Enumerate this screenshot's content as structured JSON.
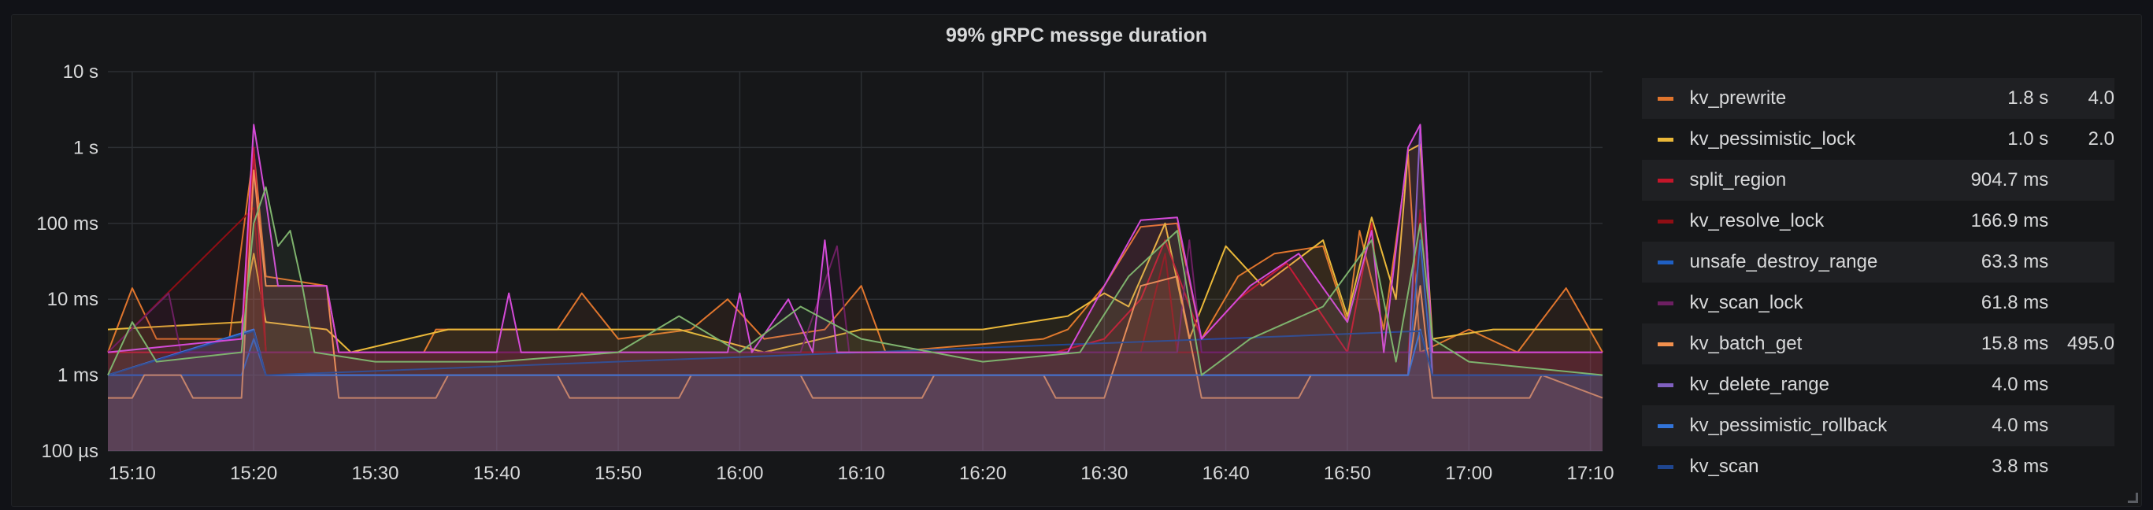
{
  "panel": {
    "title": "99% gRPC messge duration"
  },
  "chart_data": {
    "type": "line",
    "title": "99% gRPC messge duration",
    "yscale": "log",
    "ylim": [
      0.1,
      10000
    ],
    "y_ticks": [
      {
        "v": 10000,
        "label": "10 s"
      },
      {
        "v": 1000,
        "label": "1 s"
      },
      {
        "v": 100,
        "label": "100 ms"
      },
      {
        "v": 10,
        "label": "10 ms"
      },
      {
        "v": 1,
        "label": "1 ms"
      },
      {
        "v": 0.1,
        "label": "100 µs"
      }
    ],
    "x_unit": "minutes",
    "xlim": [
      "15:08",
      "17:11"
    ],
    "x_ticks": [
      "15:10",
      "15:20",
      "15:30",
      "15:40",
      "15:50",
      "16:00",
      "16:10",
      "16:20",
      "16:30",
      "16:40",
      "16:50",
      "17:00",
      "17:10"
    ],
    "grid": true,
    "legend_position": "right",
    "series": [
      {
        "name": "kv_prewrite",
        "color": "#e0752d",
        "current": "1.8 s",
        "max": "4.0",
        "points": [
          [
            "15:08",
            2
          ],
          [
            "15:10",
            14
          ],
          [
            "15:12",
            3
          ],
          [
            "15:18",
            3
          ],
          [
            "15:20",
            900
          ],
          [
            "15:21",
            20
          ],
          [
            "15:26",
            15
          ],
          [
            "15:27",
            2
          ],
          [
            "15:34",
            2
          ],
          [
            "15:35",
            4
          ],
          [
            "15:45",
            4
          ],
          [
            "15:47",
            12
          ],
          [
            "15:50",
            3
          ],
          [
            "15:56",
            4
          ],
          [
            "15:59",
            10
          ],
          [
            "16:02",
            3
          ],
          [
            "16:07",
            4
          ],
          [
            "16:10",
            15
          ],
          [
            "16:12",
            2
          ],
          [
            "16:25",
            3
          ],
          [
            "16:27",
            4
          ],
          [
            "16:30",
            15
          ],
          [
            "16:33",
            90
          ],
          [
            "16:36",
            100
          ],
          [
            "16:38",
            3
          ],
          [
            "16:41",
            20
          ],
          [
            "16:44",
            40
          ],
          [
            "16:48",
            50
          ],
          [
            "16:50",
            5
          ],
          [
            "16:51",
            80
          ],
          [
            "16:53",
            4
          ],
          [
            "16:55",
            800
          ],
          [
            "16:56",
            2
          ],
          [
            "17:00",
            4
          ],
          [
            "17:04",
            2
          ],
          [
            "17:08",
            14
          ],
          [
            "17:11",
            2
          ]
        ]
      },
      {
        "name": "kv_pessimistic_lock",
        "color": "#eab839",
        "current": "1.0 s",
        "max": "2.0",
        "points": [
          [
            "15:08",
            4
          ],
          [
            "15:19",
            5
          ],
          [
            "15:20",
            40
          ],
          [
            "15:21",
            5
          ],
          [
            "15:26",
            4
          ],
          [
            "15:28",
            2
          ],
          [
            "15:36",
            4
          ],
          [
            "15:48",
            4
          ],
          [
            "15:55",
            4
          ],
          [
            "16:02",
            2
          ],
          [
            "16:10",
            4
          ],
          [
            "16:20",
            4
          ],
          [
            "16:27",
            6
          ],
          [
            "16:30",
            12
          ],
          [
            "16:32",
            8
          ],
          [
            "16:35",
            100
          ],
          [
            "16:37",
            3
          ],
          [
            "16:40",
            50
          ],
          [
            "16:43",
            15
          ],
          [
            "16:48",
            60
          ],
          [
            "16:50",
            6
          ],
          [
            "16:52",
            120
          ],
          [
            "16:54",
            10
          ],
          [
            "16:55",
            900
          ],
          [
            "16:56",
            1100
          ],
          [
            "16:57",
            3
          ],
          [
            "17:02",
            4
          ],
          [
            "17:11",
            4
          ]
        ]
      },
      {
        "name": "split_region",
        "color": "#c4162a",
        "current": "904.7 ms",
        "max": "",
        "points": [
          [
            "15:08",
            2
          ],
          [
            "15:19",
            2
          ],
          [
            "15:20",
            1000
          ],
          [
            "15:21",
            2
          ],
          [
            "15:40",
            2
          ],
          [
            "16:00",
            2
          ],
          [
            "16:26",
            2
          ],
          [
            "16:30",
            3
          ],
          [
            "16:33",
            10
          ],
          [
            "16:35",
            60
          ],
          [
            "16:38",
            3
          ],
          [
            "16:41",
            10
          ],
          [
            "16:45",
            30
          ],
          [
            "16:50",
            2
          ],
          [
            "16:52",
            100
          ],
          [
            "16:53",
            2
          ],
          [
            "17:11",
            2
          ]
        ]
      },
      {
        "name": "kv_resolve_lock",
        "color": "#8f0e14",
        "current": "166.9 ms",
        "max": "",
        "points": [
          [
            "15:08",
            2
          ],
          [
            "15:20",
            160
          ],
          [
            "15:21",
            2
          ],
          [
            "15:40",
            2
          ],
          [
            "16:20",
            2
          ],
          [
            "16:33",
            2
          ],
          [
            "16:35",
            40
          ],
          [
            "16:36",
            2
          ],
          [
            "16:55",
            2
          ],
          [
            "16:56",
            150
          ],
          [
            "16:57",
            2
          ],
          [
            "17:11",
            2
          ]
        ]
      },
      {
        "name": "unsafe_destroy_range",
        "color": "#1f60c4",
        "current": "63.3 ms",
        "max": "",
        "points": [
          [
            "15:08",
            1
          ],
          [
            "15:19",
            1
          ],
          [
            "15:20",
            3
          ],
          [
            "15:21",
            1
          ],
          [
            "16:00",
            1
          ],
          [
            "16:55",
            1
          ],
          [
            "16:56",
            60
          ],
          [
            "16:57",
            1
          ],
          [
            "17:11",
            1
          ]
        ]
      },
      {
        "name": "kv_scan_lock",
        "color": "#6d1f62",
        "current": "61.8 ms",
        "max": "",
        "points": [
          [
            "15:08",
            2
          ],
          [
            "15:13",
            12
          ],
          [
            "15:14",
            2
          ],
          [
            "15:30",
            2
          ],
          [
            "15:50",
            2
          ],
          [
            "16:05",
            2
          ],
          [
            "16:08",
            50
          ],
          [
            "16:09",
            2
          ],
          [
            "16:36",
            2
          ],
          [
            "16:37",
            60
          ],
          [
            "16:38",
            2
          ],
          [
            "17:11",
            2
          ]
        ]
      },
      {
        "name": "kv_batch_get",
        "color": "#f2904d",
        "current": "15.8 ms",
        "max": "495.0",
        "points": [
          [
            "15:08",
            0.5
          ],
          [
            "15:10",
            0.5
          ],
          [
            "15:11",
            1
          ],
          [
            "15:14",
            1
          ],
          [
            "15:15",
            0.5
          ],
          [
            "15:19",
            0.5
          ],
          [
            "15:20",
            500
          ],
          [
            "15:21",
            15
          ],
          [
            "15:26",
            15
          ],
          [
            "15:27",
            0.5
          ],
          [
            "15:35",
            0.5
          ],
          [
            "15:36",
            1
          ],
          [
            "15:45",
            1
          ],
          [
            "15:46",
            0.5
          ],
          [
            "15:55",
            0.5
          ],
          [
            "15:56",
            1
          ],
          [
            "16:05",
            1
          ],
          [
            "16:06",
            0.5
          ],
          [
            "16:15",
            0.5
          ],
          [
            "16:16",
            1
          ],
          [
            "16:25",
            1
          ],
          [
            "16:26",
            0.5
          ],
          [
            "16:30",
            0.5
          ],
          [
            "16:33",
            15
          ],
          [
            "16:36",
            20
          ],
          [
            "16:38",
            0.5
          ],
          [
            "16:46",
            0.5
          ],
          [
            "16:47",
            1
          ],
          [
            "16:55",
            1
          ],
          [
            "16:56",
            15
          ],
          [
            "16:57",
            0.5
          ],
          [
            "17:05",
            0.5
          ],
          [
            "17:06",
            1
          ],
          [
            "17:11",
            0.5
          ]
        ]
      },
      {
        "name": "kv_delete_range",
        "color": "#8060c0",
        "current": "4.0 ms",
        "max": "",
        "points": [
          [
            "15:08",
            1
          ],
          [
            "15:20",
            4
          ],
          [
            "15:21",
            1
          ],
          [
            "16:55",
            1
          ],
          [
            "16:56",
            2000
          ],
          [
            "16:57",
            1
          ],
          [
            "17:11",
            1
          ]
        ]
      },
      {
        "name": "kv_pessimistic_rollback",
        "color": "#3274d9",
        "current": "4.0 ms",
        "max": "",
        "points": [
          [
            "15:08",
            1
          ],
          [
            "15:20",
            4
          ],
          [
            "15:21",
            1
          ],
          [
            "16:00",
            1
          ],
          [
            "16:55",
            1
          ],
          [
            "16:56",
            4
          ],
          [
            "16:57",
            1
          ],
          [
            "17:11",
            1
          ]
        ]
      },
      {
        "name": "kv_scan",
        "color": "#1f4690",
        "current": "3.8 ms",
        "max": "",
        "points": [
          [
            "15:08",
            1
          ],
          [
            "15:20",
            3.8
          ],
          [
            "15:21",
            1
          ],
          [
            "16:56",
            3.8
          ],
          [
            "16:57",
            1
          ],
          [
            "17:11",
            1
          ]
        ]
      },
      {
        "name": "",
        "color": "#d44ad8",
        "legend": false,
        "points": [
          [
            "15:08",
            2
          ],
          [
            "15:19",
            3
          ],
          [
            "15:20",
            2000
          ],
          [
            "15:21",
            200
          ],
          [
            "15:22",
            15
          ],
          [
            "15:26",
            15
          ],
          [
            "15:27",
            2
          ],
          [
            "15:40",
            2
          ],
          [
            "15:41",
            12
          ],
          [
            "15:42",
            2
          ],
          [
            "15:59",
            2
          ],
          [
            "16:00",
            12
          ],
          [
            "16:01",
            2
          ],
          [
            "16:04",
            10
          ],
          [
            "16:06",
            2
          ],
          [
            "16:07",
            60
          ],
          [
            "16:08",
            2
          ],
          [
            "16:27",
            2
          ],
          [
            "16:30",
            15
          ],
          [
            "16:33",
            110
          ],
          [
            "16:36",
            120
          ],
          [
            "16:38",
            3
          ],
          [
            "16:42",
            15
          ],
          [
            "16:46",
            40
          ],
          [
            "16:50",
            5
          ],
          [
            "16:52",
            80
          ],
          [
            "16:53",
            2
          ],
          [
            "16:55",
            1000
          ],
          [
            "16:56",
            2000
          ],
          [
            "16:57",
            2
          ],
          [
            "17:11",
            2
          ]
        ]
      },
      {
        "name": "",
        "color": "#7eb26d",
        "legend": false,
        "points": [
          [
            "15:08",
            1
          ],
          [
            "15:10",
            5
          ],
          [
            "15:12",
            1.5
          ],
          [
            "15:19",
            2
          ],
          [
            "15:20",
            100
          ],
          [
            "15:21",
            300
          ],
          [
            "15:22",
            50
          ],
          [
            "15:23",
            80
          ],
          [
            "15:24",
            15
          ],
          [
            "15:25",
            2
          ],
          [
            "15:30",
            1.5
          ],
          [
            "15:40",
            1.5
          ],
          [
            "15:50",
            2
          ],
          [
            "15:55",
            6
          ],
          [
            "16:00",
            2
          ],
          [
            "16:05",
            8
          ],
          [
            "16:10",
            3
          ],
          [
            "16:20",
            1.5
          ],
          [
            "16:28",
            2
          ],
          [
            "16:32",
            20
          ],
          [
            "16:36",
            80
          ],
          [
            "16:38",
            1
          ],
          [
            "16:42",
            3
          ],
          [
            "16:48",
            8
          ],
          [
            "16:52",
            60
          ],
          [
            "16:54",
            1.5
          ],
          [
            "16:56",
            100
          ],
          [
            "16:57",
            3
          ],
          [
            "17:00",
            1.5
          ],
          [
            "17:11",
            1
          ]
        ]
      }
    ]
  }
}
